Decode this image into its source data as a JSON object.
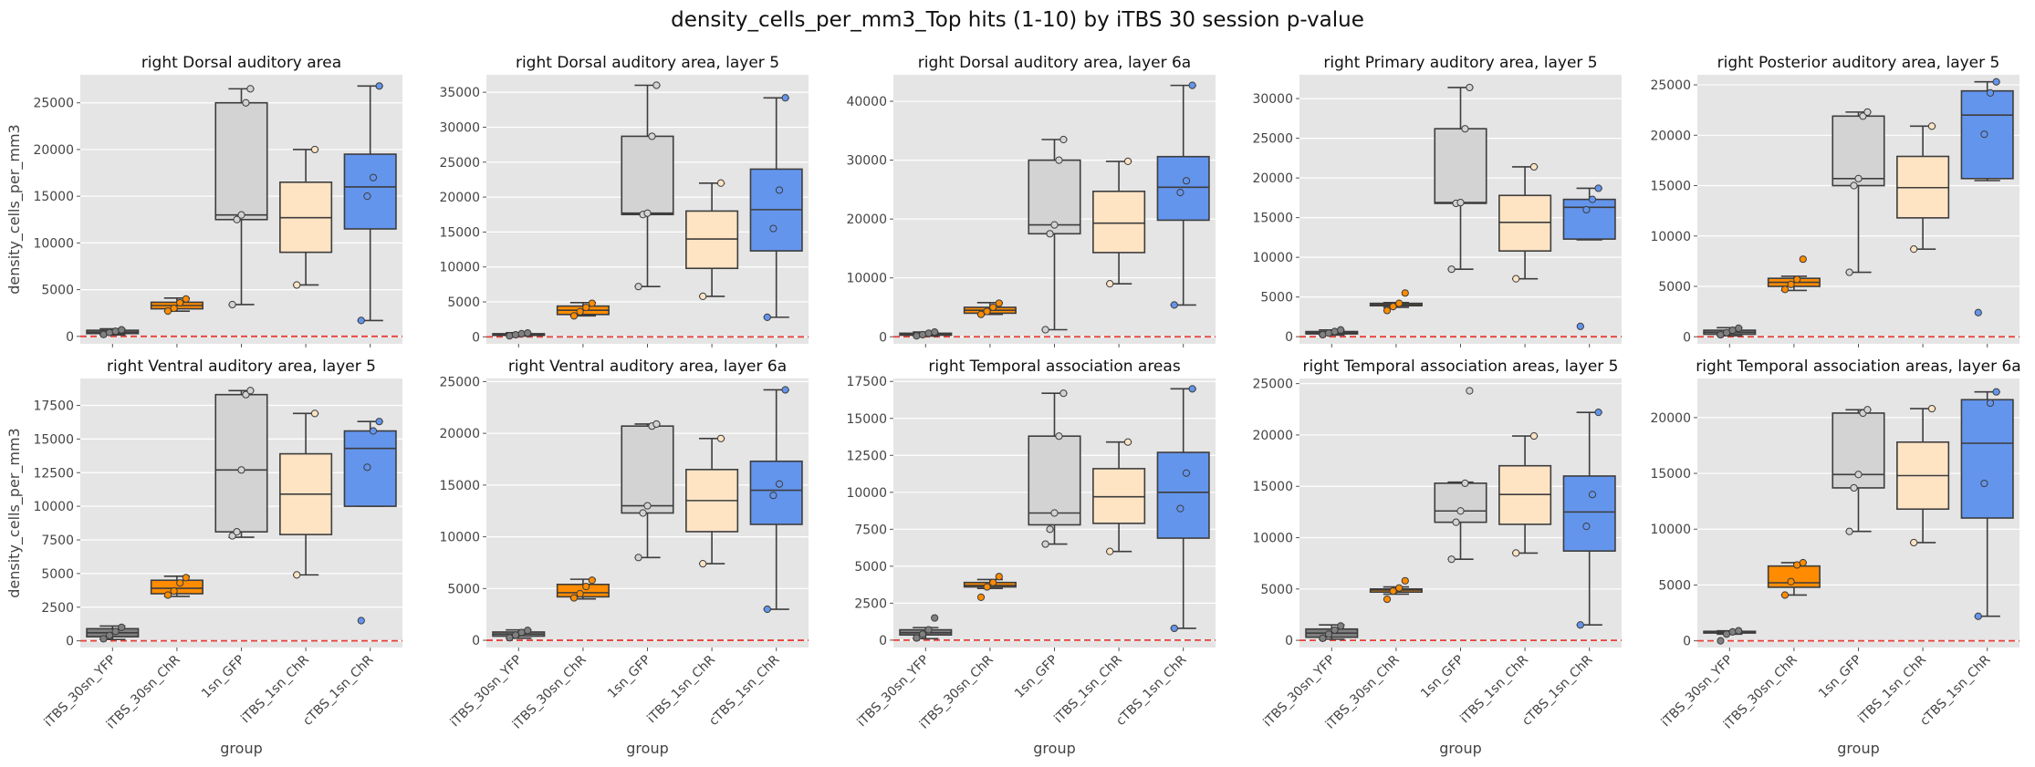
{
  "figure": {
    "title": "density_cells_per_mm3_Top hits (1-10) by iTBS 30 session p-value",
    "xlabel": "group",
    "ylabel": "density_cells_per_mm3"
  },
  "groups": [
    "iTBS_30sn_YFP",
    "iTBS_30sn_ChR",
    "1sn_GFP",
    "iTBS_1sn_ChR",
    "cTBS_1sn_ChR"
  ],
  "colors": [
    "#808080",
    "#ff8c00",
    "#d3d3d3",
    "#ffe4c4",
    "#6495ed"
  ],
  "reference_line": {
    "y": 0,
    "color": "#e8413a",
    "style": "dashed"
  },
  "chart_data": [
    {
      "type": "box",
      "title": "right Dorsal auditory area",
      "ylim": [
        -800,
        28000
      ],
      "yticks": [
        0,
        5000,
        10000,
        15000,
        20000,
        25000
      ],
      "boxes": [
        {
          "group": "iTBS_30sn_YFP",
          "whislo": 150,
          "q1": 300,
          "median": 450,
          "q3": 650,
          "whishi": 800,
          "points": [
            200,
            400,
            550,
            700
          ]
        },
        {
          "group": "iTBS_30sn_ChR",
          "whislo": 2700,
          "q1": 2950,
          "median": 3300,
          "q3": 3650,
          "whishi": 4100,
          "points": [
            2700,
            3000,
            3600,
            4000
          ]
        },
        {
          "group": "1sn_GFP",
          "whislo": 3400,
          "q1": 12500,
          "median": 13000,
          "q3": 25000,
          "whishi": 26500,
          "points": [
            3400,
            12500,
            13000,
            25000,
            26500
          ]
        },
        {
          "group": "iTBS_1sn_ChR",
          "whislo": 5500,
          "q1": 9000,
          "median": 12700,
          "q3": 16500,
          "whishi": 20000,
          "points": [
            5500,
            20000
          ]
        },
        {
          "group": "cTBS_1sn_ChR",
          "whislo": 1700,
          "q1": 11500,
          "median": 16000,
          "q3": 19500,
          "whishi": 26800,
          "points": [
            1700,
            15000,
            17000,
            26800
          ]
        }
      ]
    },
    {
      "type": "box",
      "title": "right Dorsal auditory area, layer 5",
      "ylim": [
        -1000,
        37500
      ],
      "yticks": [
        0,
        5000,
        10000,
        15000,
        20000,
        25000,
        30000,
        35000
      ],
      "boxes": [
        {
          "group": "iTBS_30sn_YFP",
          "whislo": 100,
          "q1": 200,
          "median": 300,
          "q3": 450,
          "whishi": 600,
          "points": [
            150,
            300,
            450,
            550
          ]
        },
        {
          "group": "iTBS_30sn_ChR",
          "whislo": 3000,
          "q1": 3200,
          "median": 3800,
          "q3": 4400,
          "whishi": 4900,
          "points": [
            3000,
            3600,
            4200,
            4800
          ]
        },
        {
          "group": "1sn_GFP",
          "whislo": 7200,
          "q1": 17500,
          "median": 17700,
          "q3": 28700,
          "whishi": 36000,
          "points": [
            7200,
            17500,
            17700,
            28700,
            36000
          ]
        },
        {
          "group": "iTBS_1sn_ChR",
          "whislo": 5800,
          "q1": 9800,
          "median": 14000,
          "q3": 18000,
          "whishi": 22000,
          "points": [
            5800,
            22000
          ]
        },
        {
          "group": "cTBS_1sn_ChR",
          "whislo": 2800,
          "q1": 12300,
          "median": 18200,
          "q3": 24000,
          "whishi": 34200,
          "points": [
            2800,
            15500,
            21000,
            34200
          ]
        }
      ]
    },
    {
      "type": "box",
      "title": "right Dorsal auditory area, layer 6a",
      "ylim": [
        -1200,
        44500
      ],
      "yticks": [
        0,
        10000,
        20000,
        30000,
        40000
      ],
      "boxes": [
        {
          "group": "iTBS_30sn_YFP",
          "whislo": 100,
          "q1": 250,
          "median": 400,
          "q3": 600,
          "whishi": 800,
          "points": [
            150,
            350,
            600,
            800
          ]
        },
        {
          "group": "iTBS_30sn_ChR",
          "whislo": 3800,
          "q1": 4000,
          "median": 4500,
          "q3": 5000,
          "whishi": 5800,
          "points": [
            3800,
            4300,
            5000,
            5700
          ]
        },
        {
          "group": "1sn_GFP",
          "whislo": 1200,
          "q1": 17500,
          "median": 19000,
          "q3": 30000,
          "whishi": 33500,
          "points": [
            1200,
            17500,
            19000,
            30000,
            33500
          ]
        },
        {
          "group": "iTBS_1sn_ChR",
          "whislo": 9000,
          "q1": 14300,
          "median": 19300,
          "q3": 24700,
          "whishi": 29800,
          "points": [
            9000,
            29800
          ]
        },
        {
          "group": "cTBS_1sn_ChR",
          "whislo": 5400,
          "q1": 19800,
          "median": 25400,
          "q3": 30600,
          "whishi": 42700,
          "points": [
            5400,
            24500,
            26500,
            42700
          ]
        }
      ]
    },
    {
      "type": "box",
      "title": "right Primary auditory area, layer 5",
      "ylim": [
        -900,
        33000
      ],
      "yticks": [
        0,
        5000,
        10000,
        15000,
        20000,
        25000,
        30000
      ],
      "boxes": [
        {
          "group": "iTBS_30sn_YFP",
          "whislo": 200,
          "q1": 350,
          "median": 500,
          "q3": 650,
          "whishi": 850,
          "points": [
            250,
            450,
            650,
            850
          ]
        },
        {
          "group": "iTBS_30sn_ChR",
          "whislo": 3700,
          "q1": 3900,
          "median": 4000,
          "q3": 4200,
          "whishi": 4300,
          "points": [
            3300,
            3800,
            4200,
            5500
          ]
        },
        {
          "group": "1sn_GFP",
          "whislo": 8500,
          "q1": 16800,
          "median": 16900,
          "q3": 26200,
          "whishi": 31400,
          "points": [
            8500,
            16800,
            16900,
            26200,
            31400
          ]
        },
        {
          "group": "iTBS_1sn_ChR",
          "whislo": 7300,
          "q1": 10800,
          "median": 14400,
          "q3": 17800,
          "whishi": 21400,
          "points": [
            7300,
            21400
          ]
        },
        {
          "group": "cTBS_1sn_ChR",
          "whislo": 12200,
          "q1": 12300,
          "median": 16300,
          "q3": 17300,
          "whishi": 18700,
          "points": [
            1300,
            16000,
            17300,
            18700
          ]
        }
      ]
    },
    {
      "type": "box",
      "title": "right Posterior auditory area, layer 5",
      "ylim": [
        -700,
        26000
      ],
      "yticks": [
        0,
        5000,
        10000,
        15000,
        20000,
        25000
      ],
      "boxes": [
        {
          "group": "iTBS_30sn_YFP",
          "whislo": 100,
          "q1": 250,
          "median": 450,
          "q3": 650,
          "whishi": 900,
          "points": [
            200,
            400,
            650,
            850
          ]
        },
        {
          "group": "iTBS_30sn_ChR",
          "whislo": 4600,
          "q1": 5000,
          "median": 5400,
          "q3": 5800,
          "whishi": 6000,
          "points": [
            4700,
            5200,
            5700,
            7700
          ]
        },
        {
          "group": "1sn_GFP",
          "whislo": 6400,
          "q1": 15000,
          "median": 15700,
          "q3": 21900,
          "whishi": 22300,
          "points": [
            6400,
            15000,
            15700,
            21900,
            22300
          ]
        },
        {
          "group": "iTBS_1sn_ChR",
          "whislo": 8700,
          "q1": 11800,
          "median": 14800,
          "q3": 17900,
          "whishi": 20900,
          "points": [
            8700,
            20900
          ]
        },
        {
          "group": "cTBS_1sn_ChR",
          "whislo": 15500,
          "q1": 15700,
          "median": 22000,
          "q3": 24400,
          "whishi": 25300,
          "points": [
            2400,
            20100,
            24200,
            25300
          ]
        }
      ]
    },
    {
      "type": "box",
      "title": "right Ventral auditory area, layer 5",
      "ylim": [
        -500,
        19500
      ],
      "yticks": [
        0,
        2500,
        5000,
        7500,
        10000,
        12500,
        15000,
        17500
      ],
      "boxes": [
        {
          "group": "iTBS_30sn_YFP",
          "whislo": 100,
          "q1": 300,
          "median": 600,
          "q3": 900,
          "whishi": 1100,
          "points": [
            150,
            400,
            700,
            1000
          ]
        },
        {
          "group": "iTBS_30sn_ChR",
          "whislo": 3300,
          "q1": 3500,
          "median": 3900,
          "q3": 4500,
          "whishi": 4800,
          "points": [
            3400,
            3700,
            4300,
            4700
          ]
        },
        {
          "group": "1sn_GFP",
          "whislo": 7700,
          "q1": 8100,
          "median": 12700,
          "q3": 18300,
          "whishi": 18600,
          "points": [
            7800,
            8100,
            12700,
            18300,
            18600
          ]
        },
        {
          "group": "iTBS_1sn_ChR",
          "whislo": 4900,
          "q1": 7900,
          "median": 10900,
          "q3": 13900,
          "whishi": 16900,
          "points": [
            4900,
            16900
          ]
        },
        {
          "group": "cTBS_1sn_ChR",
          "whislo": 10000,
          "q1": 10000,
          "median": 14300,
          "q3": 15600,
          "whishi": 16300,
          "points": [
            1500,
            12900,
            15600,
            16300
          ]
        }
      ]
    },
    {
      "type": "box",
      "title": "right Ventral auditory area, layer 6a",
      "ylim": [
        -700,
        25300
      ],
      "yticks": [
        0,
        5000,
        10000,
        15000,
        20000,
        25000
      ],
      "boxes": [
        {
          "group": "iTBS_30sn_YFP",
          "whislo": 200,
          "q1": 400,
          "median": 600,
          "q3": 800,
          "whishi": 1000,
          "points": [
            250,
            500,
            750,
            950
          ]
        },
        {
          "group": "iTBS_30sn_ChR",
          "whislo": 4000,
          "q1": 4200,
          "median": 4600,
          "q3": 5400,
          "whishi": 5900,
          "points": [
            4100,
            4500,
            5200,
            5800
          ]
        },
        {
          "group": "1sn_GFP",
          "whislo": 8000,
          "q1": 12300,
          "median": 13000,
          "q3": 20700,
          "whishi": 20900,
          "points": [
            8000,
            12300,
            13000,
            20700,
            20900
          ]
        },
        {
          "group": "iTBS_1sn_ChR",
          "whislo": 7400,
          "q1": 10500,
          "median": 13500,
          "q3": 16500,
          "whishi": 19500,
          "points": [
            7400,
            19500
          ]
        },
        {
          "group": "cTBS_1sn_ChR",
          "whislo": 3000,
          "q1": 11200,
          "median": 14500,
          "q3": 17300,
          "whishi": 24200,
          "points": [
            3000,
            14000,
            15100,
            24200
          ]
        }
      ]
    },
    {
      "type": "box",
      "title": "right Temporal association areas",
      "ylim": [
        -500,
        17700
      ],
      "yticks": [
        0,
        2500,
        5000,
        7500,
        10000,
        12500,
        15000,
        17500
      ],
      "boxes": [
        {
          "group": "iTBS_30sn_YFP",
          "whislo": 100,
          "q1": 350,
          "median": 500,
          "q3": 700,
          "whishi": 850,
          "points": [
            150,
            400,
            700,
            1500
          ]
        },
        {
          "group": "iTBS_30sn_ChR",
          "whislo": 3500,
          "q1": 3600,
          "median": 3700,
          "q3": 3900,
          "whishi": 4100,
          "points": [
            2900,
            3600,
            3900,
            4300
          ]
        },
        {
          "group": "1sn_GFP",
          "whislo": 6500,
          "q1": 7800,
          "median": 8600,
          "q3": 13800,
          "whishi": 16700,
          "points": [
            6500,
            7500,
            8600,
            13800,
            16700
          ]
        },
        {
          "group": "iTBS_1sn_ChR",
          "whislo": 6000,
          "q1": 7900,
          "median": 9700,
          "q3": 11600,
          "whishi": 13400,
          "points": [
            6000,
            13400
          ]
        },
        {
          "group": "cTBS_1sn_ChR",
          "whislo": 800,
          "q1": 6900,
          "median": 10000,
          "q3": 12700,
          "whishi": 17000,
          "points": [
            800,
            8900,
            11300,
            17000
          ]
        }
      ]
    },
    {
      "type": "box",
      "title": "right Temporal association areas, layer 5",
      "ylim": [
        -700,
        25500
      ],
      "yticks": [
        0,
        5000,
        10000,
        15000,
        20000,
        25000
      ],
      "boxes": [
        {
          "group": "iTBS_30sn_YFP",
          "whislo": 100,
          "q1": 300,
          "median": 700,
          "q3": 1100,
          "whishi": 1500,
          "points": [
            200,
            600,
            1000,
            1400
          ]
        },
        {
          "group": "iTBS_30sn_ChR",
          "whislo": 4500,
          "q1": 4700,
          "median": 4900,
          "q3": 5000,
          "whishi": 5200,
          "points": [
            4000,
            4800,
            5100,
            5800
          ]
        },
        {
          "group": "1sn_GFP",
          "whislo": 7900,
          "q1": 11500,
          "median": 12600,
          "q3": 15300,
          "whishi": 15400,
          "points": [
            7900,
            11500,
            12600,
            15300,
            24300
          ]
        },
        {
          "group": "iTBS_1sn_ChR",
          "whislo": 8500,
          "q1": 11300,
          "median": 14200,
          "q3": 17000,
          "whishi": 19900,
          "points": [
            8500,
            19900
          ]
        },
        {
          "group": "cTBS_1sn_ChR",
          "whislo": 1500,
          "q1": 8700,
          "median": 12500,
          "q3": 16000,
          "whishi": 22200,
          "points": [
            1500,
            11100,
            14200,
            22200
          ]
        }
      ]
    },
    {
      "type": "box",
      "title": "right Temporal association areas, layer 6a",
      "ylim": [
        -600,
        23500
      ],
      "yticks": [
        0,
        5000,
        10000,
        15000,
        20000
      ],
      "boxes": [
        {
          "group": "iTBS_30sn_YFP",
          "whislo": 600,
          "q1": 700,
          "median": 800,
          "q3": 850,
          "whishi": 900,
          "points": [
            0,
            600,
            800,
            900
          ]
        },
        {
          "group": "iTBS_30sn_ChR",
          "whislo": 4100,
          "q1": 4800,
          "median": 5200,
          "q3": 6700,
          "whishi": 7000,
          "points": [
            4100,
            5300,
            6800,
            7000
          ]
        },
        {
          "group": "1sn_GFP",
          "whislo": 9800,
          "q1": 13700,
          "median": 14900,
          "q3": 20400,
          "whishi": 20700,
          "points": [
            9800,
            13700,
            14900,
            20400,
            20700
          ]
        },
        {
          "group": "iTBS_1sn_ChR",
          "whislo": 8800,
          "q1": 11800,
          "median": 14800,
          "q3": 17800,
          "whishi": 20800,
          "points": [
            8800,
            20800
          ]
        },
        {
          "group": "cTBS_1sn_ChR",
          "whislo": 2200,
          "q1": 11000,
          "median": 17700,
          "q3": 21600,
          "whishi": 22300,
          "points": [
            2200,
            14100,
            21300,
            22300
          ]
        }
      ]
    }
  ]
}
